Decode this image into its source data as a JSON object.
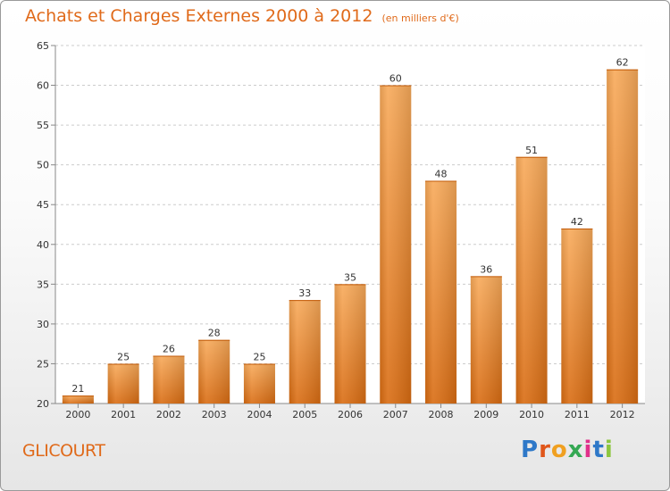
{
  "header": {
    "title": "Achats et Charges Externes 2000 à 2012",
    "subtitle": "(en milliers d'€)"
  },
  "footer": {
    "town": "GLICOURT",
    "logo": "Proxiti"
  },
  "colors": {
    "title": "#e06a1a",
    "bar_top": "#f8aa5a",
    "bar_bottom": "#d96c12",
    "grid": "#cccccc"
  },
  "chart_data": {
    "type": "bar",
    "title": "Achats et Charges Externes 2000 à 2012",
    "subtitle": "(en milliers d'€)",
    "xlabel": "",
    "ylabel": "",
    "categories": [
      "2000",
      "2001",
      "2002",
      "2003",
      "2004",
      "2005",
      "2006",
      "2007",
      "2008",
      "2009",
      "2010",
      "2011",
      "2012"
    ],
    "values": [
      21,
      25,
      26,
      28,
      25,
      33,
      35,
      60,
      48,
      36,
      51,
      42,
      62
    ],
    "ylim": [
      20,
      65
    ],
    "yticks": [
      20,
      25,
      30,
      35,
      40,
      45,
      50,
      55,
      60,
      65
    ],
    "grid": true,
    "data_labels": true
  }
}
